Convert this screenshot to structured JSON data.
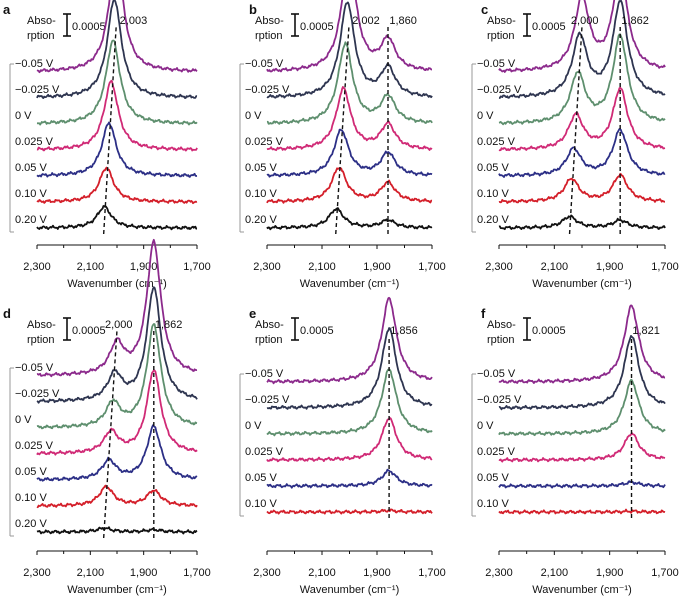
{
  "colors": {
    "-0.05 V": "#8c2a8c",
    "-0.025 V": "#2e3550",
    "0 V": "#5e8f6e",
    "0.025 V": "#d02a76",
    "0.05 V": "#2c2f86",
    "0.10 V": "#d41f2a",
    "0.20 V": "#111111"
  },
  "scale_bar": {
    "label_line1": "Abso-",
    "label_line2": "rption",
    "value": "0.0005"
  },
  "chart_data": [
    {
      "type": "line",
      "panel": "a",
      "xlabel": "Wavenumber (cm⁻¹)",
      "xlim": [
        2300,
        1700
      ],
      "xticks": [
        "2,300",
        "2,100",
        "1,900",
        "1,700"
      ],
      "series": [
        {
          "name": "−0.05 V",
          "peaks": [
            {
              "center": 2003,
              "height": 0.00155
            }
          ]
        },
        {
          "name": "−0.025 V",
          "peaks": [
            {
              "center": 2010,
              "height": 0.0013
            }
          ]
        },
        {
          "name": "0 V",
          "peaks": [
            {
              "center": 2015,
              "height": 0.0011
            }
          ]
        },
        {
          "name": "0.025 V",
          "peaks": [
            {
              "center": 2022,
              "height": 0.0009
            }
          ]
        },
        {
          "name": "0.05 V",
          "peaks": [
            {
              "center": 2030,
              "height": 0.0007
            }
          ]
        },
        {
          "name": "0.10 V",
          "peaks": [
            {
              "center": 2040,
              "height": 0.00045
            }
          ]
        },
        {
          "name": "0.20 V",
          "peaks": [
            {
              "center": 2048,
              "height": 0.00028
            }
          ]
        }
      ],
      "guides": [
        {
          "from": 2050,
          "to": 2003
        }
      ],
      "annotations": [
        {
          "text": "2,003",
          "x": 1990
        }
      ]
    },
    {
      "type": "line",
      "panel": "b",
      "xlabel": "Wavenumber (cm⁻¹)",
      "xlim": [
        2300,
        1700
      ],
      "xticks": [
        "2,300",
        "2,100",
        "1,900",
        "1,700"
      ],
      "series": [
        {
          "name": "−0.05 V",
          "peaks": [
            {
              "center": 2002,
              "height": 0.0015
            },
            {
              "center": 1860,
              "height": 0.0004
            }
          ]
        },
        {
          "name": "−0.025 V",
          "peaks": [
            {
              "center": 2008,
              "height": 0.00125
            },
            {
              "center": 1860,
              "height": 0.00038
            }
          ]
        },
        {
          "name": "0 V",
          "peaks": [
            {
              "center": 2015,
              "height": 0.00105
            },
            {
              "center": 1860,
              "height": 0.00035
            }
          ]
        },
        {
          "name": "0.025 V",
          "peaks": [
            {
              "center": 2022,
              "height": 0.0008
            },
            {
              "center": 1860,
              "height": 0.00033
            }
          ]
        },
        {
          "name": "0.05 V",
          "peaks": [
            {
              "center": 2030,
              "height": 0.0006
            },
            {
              "center": 1860,
              "height": 0.0003
            }
          ]
        },
        {
          "name": "0.10 V",
          "peaks": [
            {
              "center": 2038,
              "height": 0.00045
            },
            {
              "center": 1860,
              "height": 0.00025
            }
          ]
        },
        {
          "name": "0.20 V",
          "peaks": [
            {
              "center": 2048,
              "height": 0.00025
            },
            {
              "center": 1860,
              "height": 0.0001
            }
          ]
        }
      ],
      "guides": [
        {
          "from": 2050,
          "to": 2002
        },
        {
          "from": 1860,
          "to": 1860
        }
      ],
      "annotations": [
        {
          "text": "2,002",
          "x": 1990
        },
        {
          "text": "1,860",
          "x": 1855
        }
      ]
    },
    {
      "type": "line",
      "panel": "c",
      "xlabel": "Wavenumber (cm⁻¹)",
      "xlim": [
        2300,
        1700
      ],
      "xticks": [
        "2,300",
        "2,100",
        "1,900",
        "1,700"
      ],
      "series": [
        {
          "name": "−0.05 V",
          "peaks": [
            {
              "center": 2000,
              "height": 0.00095
            },
            {
              "center": 1862,
              "height": 0.0013
            }
          ]
        },
        {
          "name": "−0.025 V",
          "peaks": [
            {
              "center": 2008,
              "height": 0.0008
            },
            {
              "center": 1862,
              "height": 0.00125
            }
          ]
        },
        {
          "name": "0 V",
          "peaks": [
            {
              "center": 2015,
              "height": 0.00065
            },
            {
              "center": 1862,
              "height": 0.00115
            }
          ]
        },
        {
          "name": "0.025 V",
          "peaks": [
            {
              "center": 2022,
              "height": 0.00045
            },
            {
              "center": 1862,
              "height": 0.0008
            }
          ]
        },
        {
          "name": "0.05 V",
          "peaks": [
            {
              "center": 2030,
              "height": 0.00035
            },
            {
              "center": 1862,
              "height": 0.0006
            }
          ]
        },
        {
          "name": "0.10 V",
          "peaks": [
            {
              "center": 2038,
              "height": 0.0003
            },
            {
              "center": 1862,
              "height": 0.00035
            }
          ]
        },
        {
          "name": "0.20 V",
          "peaks": [
            {
              "center": 2045,
              "height": 0.00015
            },
            {
              "center": 1862,
              "height": 0.0001
            }
          ]
        }
      ],
      "guides": [
        {
          "from": 2045,
          "to": 2000
        },
        {
          "from": 1862,
          "to": 1862
        }
      ],
      "annotations": [
        {
          "text": "2,000",
          "x": 2040
        },
        {
          "text": "1,862",
          "x": 1858
        }
      ]
    },
    {
      "type": "line",
      "panel": "d",
      "xlabel": "Wavenumber (cm⁻¹)",
      "xlim": [
        2300,
        1700
      ],
      "xticks": [
        "2,300",
        "2,100",
        "1,900",
        "1,700"
      ],
      "series": [
        {
          "name": "−0.05 V",
          "peaks": [
            {
              "center": 2000,
              "height": 0.0004
            },
            {
              "center": 1862,
              "height": 0.00175
            }
          ]
        },
        {
          "name": "−0.025 V",
          "peaks": [
            {
              "center": 2008,
              "height": 0.00035
            },
            {
              "center": 1862,
              "height": 0.0015
            }
          ]
        },
        {
          "name": "0 V",
          "peaks": [
            {
              "center": 2015,
              "height": 0.00032
            },
            {
              "center": 1862,
              "height": 0.00135
            }
          ]
        },
        {
          "name": "0.025 V",
          "peaks": [
            {
              "center": 2022,
              "height": 0.00028
            },
            {
              "center": 1862,
              "height": 0.0011
            }
          ]
        },
        {
          "name": "0.05 V",
          "peaks": [
            {
              "center": 2030,
              "height": 0.00025
            },
            {
              "center": 1862,
              "height": 0.0007
            }
          ]
        },
        {
          "name": "0.10 V",
          "peaks": [
            {
              "center": 2040,
              "height": 0.00025
            },
            {
              "center": 1862,
              "height": 0.0002
            }
          ]
        },
        {
          "name": "0.20 V",
          "peaks": [
            {
              "center": 2048,
              "height": 5e-05
            },
            {
              "center": 1862,
              "height": 3e-05
            }
          ]
        }
      ],
      "guides": [
        {
          "from": 2050,
          "to": 2000
        },
        {
          "from": 1862,
          "to": 1862
        }
      ],
      "annotations": [
        {
          "text": "2,000",
          "x": 2045
        },
        {
          "text": "1,862",
          "x": 1858
        }
      ]
    },
    {
      "type": "line",
      "panel": "e",
      "xlabel": "Wavenumber (cm⁻¹)",
      "xlim": [
        2300,
        1700
      ],
      "xticks": [
        "2,300",
        "2,100",
        "1,900",
        "1,700"
      ],
      "series": [
        {
          "name": "−0.05 V",
          "peaks": [
            {
              "center": 1856,
              "height": 0.0011
            }
          ]
        },
        {
          "name": "−0.025 V",
          "peaks": [
            {
              "center": 1856,
              "height": 0.00105
            }
          ]
        },
        {
          "name": "0 V",
          "peaks": [
            {
              "center": 1856,
              "height": 0.00085
            }
          ]
        },
        {
          "name": "0.025 V",
          "peaks": [
            {
              "center": 1856,
              "height": 0.00055
            }
          ]
        },
        {
          "name": "0.05 V",
          "peaks": [
            {
              "center": 1856,
              "height": 0.0002
            }
          ]
        },
        {
          "name": "0.10 V",
          "peaks": [
            {
              "center": 1856,
              "height": 2e-05
            }
          ]
        }
      ],
      "guides": [
        {
          "from": 1856,
          "to": 1856
        }
      ],
      "annotations": [
        {
          "text": "1,856",
          "x": 1852
        }
      ]
    },
    {
      "type": "line",
      "panel": "f",
      "xlabel": "Wavenumber (cm⁻¹)",
      "xlim": [
        2300,
        1700
      ],
      "xticks": [
        "2,300",
        "2,100",
        "1,900",
        "1,700"
      ],
      "series": [
        {
          "name": "−0.05 V",
          "peaks": [
            {
              "center": 1821,
              "height": 0.001
            }
          ]
        },
        {
          "name": "−0.025 V",
          "peaks": [
            {
              "center": 1821,
              "height": 0.00095
            }
          ]
        },
        {
          "name": "0 V",
          "peaks": [
            {
              "center": 1821,
              "height": 0.0007
            }
          ]
        },
        {
          "name": "0.025 V",
          "peaks": [
            {
              "center": 1821,
              "height": 0.00035
            }
          ]
        },
        {
          "name": "0.05 V",
          "peaks": [
            {
              "center": 1821,
              "height": 5e-05
            }
          ]
        },
        {
          "name": "0.10 V",
          "peaks": [
            {
              "center": 1821,
              "height": 1e-05
            }
          ]
        }
      ],
      "guides": [
        {
          "from": 1821,
          "to": 1821
        }
      ],
      "annotations": [
        {
          "text": "1,821",
          "x": 1818
        }
      ]
    }
  ]
}
